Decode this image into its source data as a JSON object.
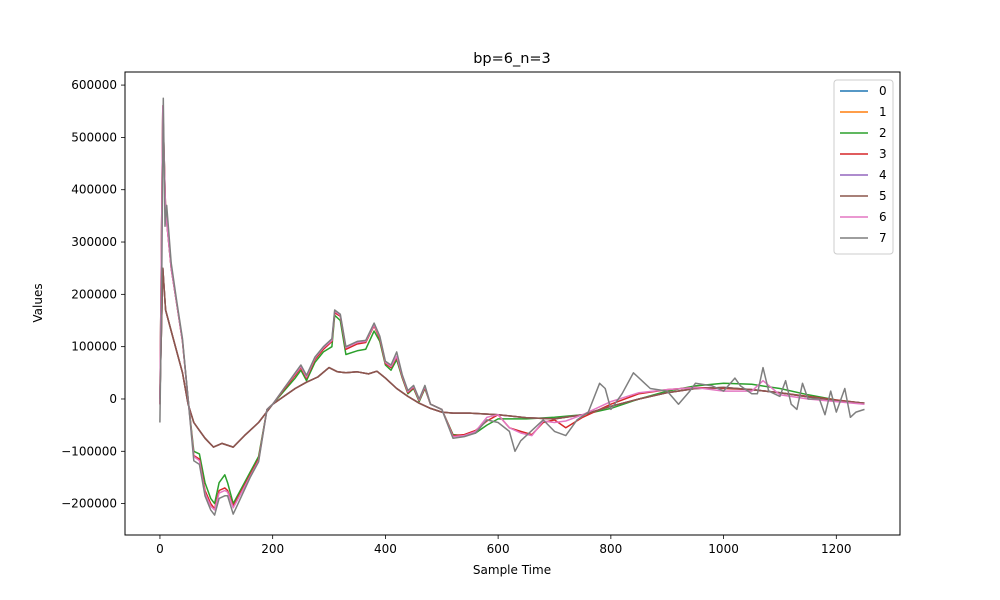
{
  "chart_data": {
    "type": "line",
    "title": "bp=6_n=3",
    "xlabel": "Sample Time",
    "ylabel": "Values",
    "xlim": [
      -62,
      1313
    ],
    "ylim": [
      -260000,
      625000
    ],
    "xticks": [
      0,
      200,
      400,
      600,
      800,
      1000,
      1200
    ],
    "yticks": [
      -200000,
      -100000,
      0,
      100000,
      200000,
      300000,
      400000,
      500000,
      600000
    ],
    "ytick_labels": [
      "−200000",
      "−100000",
      "0",
      "100000",
      "200000",
      "300000",
      "400000",
      "500000",
      "600000"
    ],
    "legend_position": "upper right",
    "grid": false,
    "series": [
      {
        "name": "0",
        "color": "#1f77b4",
        "x": [
          0,
          5,
          10,
          20,
          40,
          50,
          60,
          70,
          80,
          95,
          110,
          130,
          150,
          175,
          200,
          220,
          240,
          260,
          280,
          300,
          315,
          330,
          350,
          370,
          385,
          400,
          420,
          440,
          460,
          480,
          500,
          520,
          550,
          600,
          650,
          700,
          750,
          800,
          850,
          900,
          950,
          1000,
          1050,
          1100,
          1150,
          1200,
          1250
        ],
        "y": [
          0,
          250000,
          170000,
          130000,
          50000,
          -10000,
          -45000,
          -60000,
          -75000,
          -92000,
          -85000,
          -92000,
          -70000,
          -45000,
          -10000,
          5000,
          20000,
          32000,
          42000,
          60000,
          52000,
          50000,
          52000,
          48000,
          53000,
          40000,
          20000,
          5000,
          -8000,
          -18000,
          -25000,
          -27000,
          -27000,
          -30000,
          -36000,
          -38000,
          -30000,
          -14000,
          0,
          12000,
          20000,
          22000,
          18000,
          12000,
          4000,
          -3000,
          -8000
        ]
      },
      {
        "name": "1",
        "color": "#ff7f0e",
        "x": [
          0,
          5,
          10,
          20,
          40,
          50,
          60,
          70,
          80,
          95,
          110,
          130,
          150,
          175,
          200,
          220,
          240,
          260,
          280,
          300,
          315,
          330,
          350,
          370,
          385,
          400,
          420,
          440,
          460,
          480,
          500,
          520,
          550,
          600,
          650,
          700,
          750,
          800,
          850,
          900,
          950,
          1000,
          1050,
          1100,
          1150,
          1200,
          1250
        ],
        "y": [
          0,
          250000,
          170000,
          130000,
          50000,
          -10000,
          -45000,
          -60000,
          -75000,
          -92000,
          -85000,
          -92000,
          -70000,
          -45000,
          -10000,
          5000,
          20000,
          32000,
          42000,
          60000,
          52000,
          50000,
          52000,
          48000,
          53000,
          40000,
          20000,
          5000,
          -8000,
          -18000,
          -25000,
          -27000,
          -27000,
          -30000,
          -36000,
          -38000,
          -30000,
          -14000,
          0,
          12000,
          20000,
          22000,
          18000,
          12000,
          4000,
          -3000,
          -8000
        ]
      },
      {
        "name": "2",
        "color": "#2ca02c",
        "x": [
          0,
          5,
          10,
          20,
          30,
          40,
          50,
          60,
          70,
          80,
          90,
          97,
          105,
          115,
          120,
          130,
          145,
          160,
          175,
          190,
          200,
          220,
          240,
          250,
          260,
          275,
          290,
          305,
          310,
          320,
          330,
          350,
          365,
          380,
          390,
          400,
          410,
          420,
          430,
          440,
          450,
          460,
          470,
          480,
          500,
          520,
          540,
          560,
          580,
          600,
          650,
          700,
          750,
          800,
          850,
          900,
          950,
          1000,
          1050,
          1100,
          1150,
          1200,
          1250
        ],
        "y": [
          -10000,
          560000,
          360000,
          250000,
          180000,
          110000,
          0,
          -100000,
          -105000,
          -160000,
          -190000,
          -200000,
          -160000,
          -145000,
          -160000,
          -200000,
          -170000,
          -140000,
          -110000,
          -20000,
          -10000,
          15000,
          40000,
          55000,
          35000,
          70000,
          90000,
          100000,
          160000,
          150000,
          85000,
          92000,
          95000,
          130000,
          110000,
          65000,
          55000,
          75000,
          40000,
          10000,
          20000,
          -5000,
          20000,
          -10000,
          -20000,
          -68000,
          -70000,
          -65000,
          -50000,
          -38000,
          -38000,
          -35000,
          -30000,
          -18000,
          0,
          15000,
          25000,
          30000,
          28000,
          20000,
          8000,
          -2000,
          -8000
        ]
      },
      {
        "name": "3",
        "color": "#d62728",
        "x": [
          0,
          5,
          10,
          20,
          30,
          40,
          50,
          60,
          70,
          80,
          90,
          97,
          105,
          115,
          120,
          130,
          145,
          160,
          175,
          190,
          200,
          220,
          240,
          250,
          260,
          275,
          290,
          305,
          310,
          320,
          330,
          350,
          365,
          380,
          390,
          400,
          410,
          420,
          430,
          440,
          450,
          460,
          470,
          480,
          500,
          520,
          540,
          560,
          580,
          600,
          620,
          640,
          660,
          680,
          700,
          720,
          750,
          800,
          850,
          900,
          950,
          1000,
          1050,
          1100,
          1150,
          1200,
          1250
        ],
        "y": [
          -10000,
          560000,
          360000,
          250000,
          180000,
          110000,
          0,
          -108000,
          -115000,
          -175000,
          -200000,
          -210000,
          -175000,
          -170000,
          -175000,
          -205000,
          -175000,
          -145000,
          -115000,
          -20000,
          -10000,
          18000,
          45000,
          60000,
          40000,
          75000,
          95000,
          110000,
          165000,
          158000,
          95000,
          105000,
          108000,
          140000,
          115000,
          68000,
          60000,
          80000,
          42000,
          12000,
          22000,
          -3000,
          22000,
          -10000,
          -20000,
          -70000,
          -68000,
          -60000,
          -42000,
          -30000,
          -55000,
          -62000,
          -68000,
          -45000,
          -40000,
          -55000,
          -35000,
          -10000,
          10000,
          18000,
          22000,
          20000,
          18000,
          12000,
          5000,
          -2000,
          -8000
        ]
      },
      {
        "name": "4",
        "color": "#9467bd",
        "x": [
          0,
          5,
          10,
          20,
          40,
          50,
          60,
          70,
          80,
          95,
          110,
          130,
          150,
          175,
          200,
          220,
          240,
          260,
          280,
          300,
          315,
          330,
          350,
          370,
          385,
          400,
          420,
          440,
          460,
          480,
          500,
          520,
          550,
          600,
          650,
          700,
          750,
          800,
          850,
          900,
          950,
          1000,
          1050,
          1100,
          1150,
          1200,
          1250
        ],
        "y": [
          0,
          250000,
          170000,
          130000,
          50000,
          -10000,
          -45000,
          -60000,
          -75000,
          -92000,
          -85000,
          -92000,
          -70000,
          -45000,
          -10000,
          5000,
          20000,
          32000,
          42000,
          60000,
          52000,
          50000,
          52000,
          48000,
          53000,
          40000,
          20000,
          5000,
          -8000,
          -18000,
          -25000,
          -27000,
          -27000,
          -30000,
          -36000,
          -38000,
          -30000,
          -14000,
          0,
          12000,
          20000,
          22000,
          18000,
          12000,
          4000,
          -3000,
          -8000
        ]
      },
      {
        "name": "5",
        "color": "#8c564b",
        "x": [
          0,
          5,
          10,
          20,
          40,
          50,
          60,
          70,
          80,
          95,
          110,
          130,
          150,
          175,
          200,
          220,
          240,
          260,
          280,
          300,
          315,
          330,
          350,
          370,
          385,
          400,
          420,
          440,
          460,
          480,
          500,
          520,
          550,
          600,
          650,
          700,
          750,
          800,
          850,
          900,
          950,
          1000,
          1050,
          1100,
          1150,
          1200,
          1250
        ],
        "y": [
          0,
          250000,
          170000,
          130000,
          50000,
          -10000,
          -45000,
          -60000,
          -75000,
          -92000,
          -85000,
          -92000,
          -70000,
          -45000,
          -10000,
          5000,
          20000,
          32000,
          42000,
          60000,
          52000,
          50000,
          52000,
          48000,
          53000,
          40000,
          20000,
          5000,
          -8000,
          -18000,
          -25000,
          -27000,
          -27000,
          -30000,
          -36000,
          -38000,
          -30000,
          -14000,
          0,
          12000,
          20000,
          22000,
          18000,
          12000,
          4000,
          -3000,
          -8000
        ]
      },
      {
        "name": "6",
        "color": "#e377c2",
        "x": [
          0,
          5,
          10,
          20,
          30,
          40,
          50,
          60,
          70,
          80,
          90,
          97,
          105,
          115,
          120,
          130,
          145,
          160,
          175,
          190,
          200,
          220,
          240,
          250,
          260,
          275,
          290,
          305,
          310,
          320,
          330,
          350,
          365,
          380,
          390,
          400,
          410,
          420,
          430,
          440,
          450,
          460,
          470,
          480,
          500,
          520,
          540,
          560,
          580,
          600,
          620,
          640,
          660,
          680,
          700,
          720,
          750,
          800,
          850,
          900,
          950,
          1000,
          1050,
          1070,
          1100,
          1150,
          1200,
          1250
        ],
        "y": [
          -10000,
          560000,
          360000,
          250000,
          180000,
          110000,
          0,
          -110000,
          -118000,
          -180000,
          -205000,
          -212000,
          -180000,
          -175000,
          -178000,
          -208000,
          -178000,
          -148000,
          -118000,
          -20000,
          -10000,
          20000,
          48000,
          62000,
          42000,
          78000,
          98000,
          112000,
          168000,
          160000,
          98000,
          108000,
          110000,
          142000,
          118000,
          70000,
          62000,
          82000,
          44000,
          14000,
          24000,
          -2000,
          24000,
          -10000,
          -20000,
          -72000,
          -70000,
          -62000,
          -35000,
          -30000,
          -55000,
          -65000,
          -70000,
          -42000,
          -45000,
          -42000,
          -30000,
          -5000,
          12000,
          18000,
          22000,
          15000,
          15000,
          35000,
          8000,
          0,
          -5000,
          -10000
        ]
      },
      {
        "name": "7",
        "color": "#7f7f7f",
        "x": [
          0,
          3,
          6,
          9,
          12,
          20,
          30,
          40,
          50,
          60,
          70,
          80,
          90,
          97,
          105,
          115,
          120,
          130,
          145,
          160,
          175,
          190,
          200,
          220,
          240,
          250,
          260,
          275,
          290,
          305,
          310,
          320,
          330,
          350,
          365,
          380,
          390,
          400,
          410,
          420,
          430,
          440,
          450,
          460,
          470,
          480,
          500,
          520,
          540,
          560,
          580,
          600,
          620,
          630,
          640,
          660,
          680,
          700,
          720,
          740,
          760,
          780,
          790,
          800,
          820,
          840,
          860,
          870,
          900,
          920,
          940,
          950,
          980,
          1000,
          1020,
          1030,
          1050,
          1060,
          1070,
          1080,
          1100,
          1110,
          1120,
          1130,
          1140,
          1150,
          1170,
          1180,
          1190,
          1200,
          1215,
          1225,
          1235,
          1250
        ],
        "y": [
          -45000,
          200000,
          575000,
          330000,
          370000,
          260000,
          185000,
          115000,
          0,
          -118000,
          -125000,
          -185000,
          -212000,
          -222000,
          -190000,
          -185000,
          -185000,
          -220000,
          -185000,
          -150000,
          -120000,
          -20000,
          -10000,
          20000,
          50000,
          65000,
          45000,
          80000,
          100000,
          115000,
          170000,
          162000,
          100000,
          110000,
          112000,
          145000,
          120000,
          72000,
          65000,
          90000,
          46000,
          16000,
          26000,
          0,
          26000,
          -10000,
          -20000,
          -75000,
          -72000,
          -65000,
          -40000,
          -45000,
          -62000,
          -100000,
          -80000,
          -60000,
          -40000,
          -62000,
          -70000,
          -40000,
          -25000,
          30000,
          20000,
          -20000,
          10000,
          50000,
          30000,
          20000,
          15000,
          -10000,
          15000,
          30000,
          25000,
          15000,
          40000,
          25000,
          10000,
          10000,
          60000,
          15000,
          5000,
          35000,
          -10000,
          -20000,
          30000,
          0,
          0,
          -30000,
          15000,
          -25000,
          20000,
          -35000,
          -25000,
          -20000
        ]
      }
    ]
  }
}
